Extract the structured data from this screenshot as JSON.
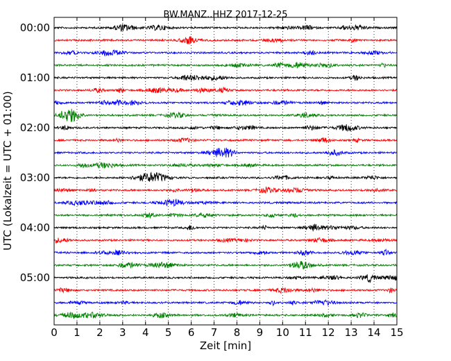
{
  "chart_data": {
    "type": "line",
    "title": "BW.MANZ..HHZ 2017-12-25",
    "xlabel": "Zeit  [min]",
    "ylabel": "UTC (Lokalzeit = UTC + 01:00)",
    "xlim": [
      0,
      15
    ],
    "x_ticks": [
      "0",
      "1",
      "2",
      "3",
      "4",
      "5",
      "6",
      "7",
      "8",
      "9",
      "10",
      "11",
      "12",
      "13",
      "14",
      "15"
    ],
    "y_tick_labels": [
      "00:00",
      "01:00",
      "02:00",
      "03:00",
      "04:00",
      "05:00"
    ],
    "y_tick_rows": [
      0,
      4,
      8,
      12,
      16,
      20
    ],
    "grid": "vertical dotted",
    "trace_colors": [
      "#000000",
      "#ff0000",
      "#0000ff",
      "#008000"
    ],
    "traces": [
      {
        "start": "00:00",
        "color": "#000000"
      },
      {
        "start": "00:15",
        "color": "#ff0000"
      },
      {
        "start": "00:30",
        "color": "#0000ff"
      },
      {
        "start": "00:45",
        "color": "#008000"
      },
      {
        "start": "01:00",
        "color": "#000000"
      },
      {
        "start": "01:15",
        "color": "#ff0000"
      },
      {
        "start": "01:30",
        "color": "#0000ff"
      },
      {
        "start": "01:45",
        "color": "#008000"
      },
      {
        "start": "02:00",
        "color": "#000000"
      },
      {
        "start": "02:15",
        "color": "#ff0000"
      },
      {
        "start": "02:30",
        "color": "#0000ff"
      },
      {
        "start": "02:45",
        "color": "#008000"
      },
      {
        "start": "03:00",
        "color": "#000000"
      },
      {
        "start": "03:15",
        "color": "#ff0000"
      },
      {
        "start": "03:30",
        "color": "#0000ff"
      },
      {
        "start": "03:45",
        "color": "#008000"
      },
      {
        "start": "04:00",
        "color": "#000000"
      },
      {
        "start": "04:15",
        "color": "#ff0000"
      },
      {
        "start": "04:30",
        "color": "#0000ff"
      },
      {
        "start": "04:45",
        "color": "#008000"
      },
      {
        "start": "05:00",
        "color": "#000000"
      },
      {
        "start": "05:15",
        "color": "#ff0000"
      },
      {
        "start": "05:30",
        "color": "#0000ff"
      },
      {
        "start": "05:45",
        "color": "#008000"
      }
    ]
  }
}
